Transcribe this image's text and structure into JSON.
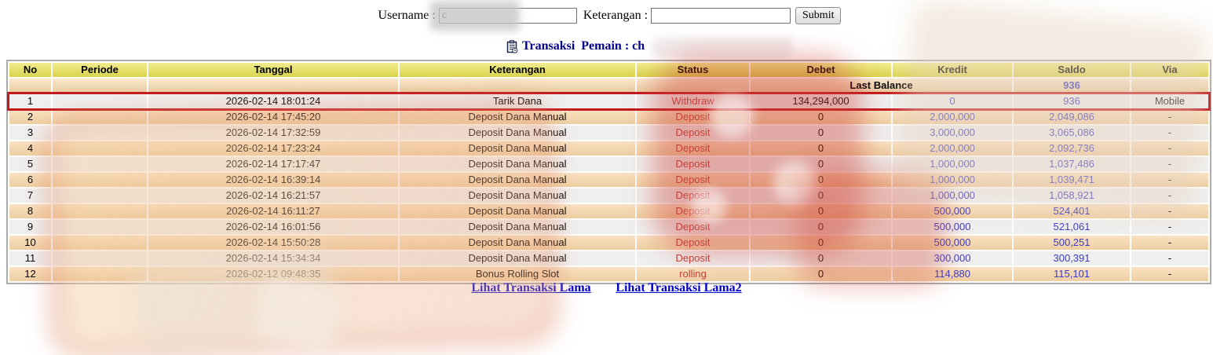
{
  "form": {
    "username_label": "Username :",
    "username_value": "c",
    "keterangan_label": "Keterangan :",
    "keterangan_value": "",
    "submit_label": "Submit"
  },
  "title": {
    "icon": "clipboard-icon",
    "text": "Transaksi  Pemain : ch"
  },
  "table": {
    "columns": [
      "No",
      "Periode",
      "Tanggal",
      "Keterangan",
      "Status",
      "Debet",
      "Kredit",
      "Saldo",
      "Via"
    ],
    "last_balance_label": "Last Balance",
    "last_balance_value": "936",
    "rows": [
      {
        "no": "1",
        "periode": "",
        "tanggal": "2026-02-14 18:01:24",
        "keterangan": "Tarik Dana",
        "status": "Withdraw",
        "debet": "134,294,000",
        "kredit": "0",
        "saldo": "936",
        "via": "Mobile",
        "highlight": true
      },
      {
        "no": "2",
        "periode": "",
        "tanggal": "2026-02-14 17:45:20",
        "keterangan": "Deposit Dana Manual",
        "status": "Deposit",
        "debet": "0",
        "kredit": "2,000,000",
        "saldo": "2,049,086",
        "via": "-",
        "highlight": false
      },
      {
        "no": "3",
        "periode": "",
        "tanggal": "2026-02-14 17:32:59",
        "keterangan": "Deposit Dana Manual",
        "status": "Deposit",
        "debet": "0",
        "kredit": "3,000,000",
        "saldo": "3,065,086",
        "via": "-",
        "highlight": false
      },
      {
        "no": "4",
        "periode": "",
        "tanggal": "2026-02-14 17:23:24",
        "keterangan": "Deposit Dana Manual",
        "status": "Deposit",
        "debet": "0",
        "kredit": "2,000,000",
        "saldo": "2,092,736",
        "via": "-",
        "highlight": false
      },
      {
        "no": "5",
        "periode": "",
        "tanggal": "2026-02-14 17:17:47",
        "keterangan": "Deposit Dana Manual",
        "status": "Deposit",
        "debet": "0",
        "kredit": "1,000,000",
        "saldo": "1,037,486",
        "via": "-",
        "highlight": false
      },
      {
        "no": "6",
        "periode": "",
        "tanggal": "2026-02-14 16:39:14",
        "keterangan": "Deposit Dana Manual",
        "status": "Deposit",
        "debet": "0",
        "kredit": "1,000,000",
        "saldo": "1,039,471",
        "via": "-",
        "highlight": false
      },
      {
        "no": "7",
        "periode": "",
        "tanggal": "2026-02-14 16:21:57",
        "keterangan": "Deposit Dana Manual",
        "status": "Deposit",
        "debet": "0",
        "kredit": "1,000,000",
        "saldo": "1,058,921",
        "via": "-",
        "highlight": false
      },
      {
        "no": "8",
        "periode": "",
        "tanggal": "2026-02-14 16:11:27",
        "keterangan": "Deposit Dana Manual",
        "status": "Deposit",
        "debet": "0",
        "kredit": "500,000",
        "saldo": "524,401",
        "via": "-",
        "highlight": false
      },
      {
        "no": "9",
        "periode": "",
        "tanggal": "2026-02-14 16:01:56",
        "keterangan": "Deposit Dana Manual",
        "status": "Deposit",
        "debet": "0",
        "kredit": "500,000",
        "saldo": "521,061",
        "via": "-",
        "highlight": false
      },
      {
        "no": "10",
        "periode": "",
        "tanggal": "2026-02-14 15:50:28",
        "keterangan": "Deposit Dana Manual",
        "status": "Deposit",
        "debet": "0",
        "kredit": "500,000",
        "saldo": "500,251",
        "via": "-",
        "highlight": false
      },
      {
        "no": "11",
        "periode": "",
        "tanggal": "2026-02-14 15:34:34",
        "keterangan": "Deposit Dana Manual",
        "status": "Deposit",
        "debet": "0",
        "kredit": "300,000",
        "saldo": "300,391",
        "via": "-",
        "highlight": false
      },
      {
        "no": "12",
        "periode": "",
        "tanggal": "2026-02-12 09:48:35",
        "keterangan": "Bonus Rolling Slot",
        "status": "rolling",
        "debet": "0",
        "kredit": "114,880",
        "saldo": "115,101",
        "via": "-",
        "highlight": false
      }
    ]
  },
  "links": [
    "Lihat Transaksi Lama",
    "Lihat Transaksi Lama2"
  ],
  "colors": {
    "header_yellow": "#EAE351",
    "row_peach": "#F6D5A8",
    "row_gray": "#EFEFEF",
    "highlight_red": "#C3191D",
    "status_red": "#C1403A",
    "value_blue": "#3A3AC4",
    "link_blue": "#0000CC",
    "title_blue": "#00008B"
  }
}
